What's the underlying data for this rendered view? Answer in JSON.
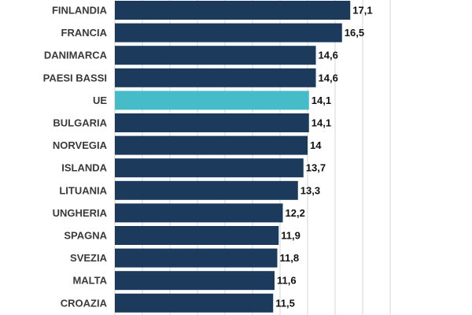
{
  "chart_data": {
    "type": "bar",
    "orientation": "horizontal",
    "title": "",
    "xlabel": "",
    "ylabel": "",
    "xlim": [
      0,
      20
    ],
    "grid": true,
    "legend": "none",
    "categories": [
      "FINLANDIA",
      "FRANCIA",
      "DANIMARCA",
      "PAESI BASSI",
      "UE",
      "BULGARIA",
      "NORVEGIA",
      "ISLANDA",
      "LITUANIA",
      "UNGHERIA",
      "SPAGNA",
      "SVEZIA",
      "MALTA",
      "CROAZIA"
    ],
    "values": [
      17.1,
      16.5,
      14.6,
      14.6,
      14.1,
      14.1,
      14,
      13.7,
      13.3,
      12.2,
      11.9,
      11.8,
      11.6,
      11.5
    ],
    "value_labels": [
      "17,1",
      "16,5",
      "14,6",
      "14,6",
      "14,1",
      "14,1",
      "14",
      "13,7",
      "13,3",
      "12,2",
      "11,9",
      "11,8",
      "11,6",
      "11,5"
    ],
    "highlight_category": "UE",
    "colors": {
      "bar": "#1b3a5c",
      "highlight": "#45bcc7",
      "grid": "#d6d6d6"
    }
  }
}
